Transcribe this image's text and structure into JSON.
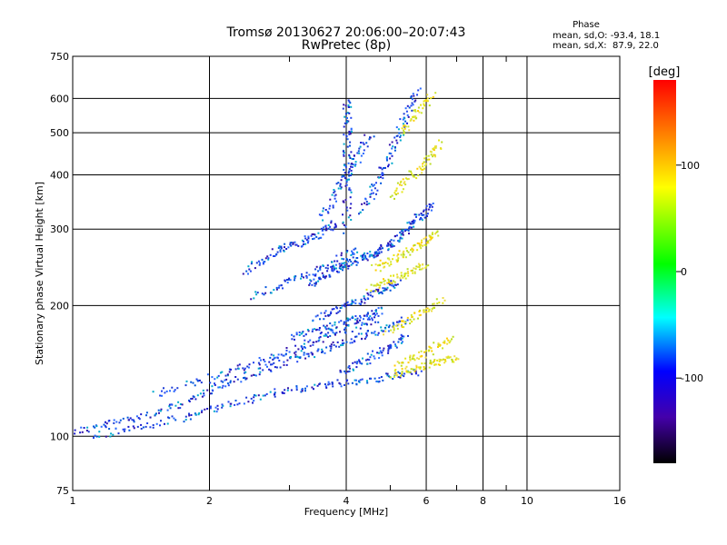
{
  "chart_data": {
    "type": "scatter",
    "title": "Tromsø 20130627 20:06:00–20:07:43",
    "subtitle": "RwPretec (8p)",
    "xlabel": "Frequency [MHz]",
    "ylabel": "Stationary phase Virtual Height [km]",
    "x_scale": "log",
    "y_scale": "log",
    "xlim": [
      1,
      16
    ],
    "ylim": [
      75,
      750
    ],
    "x_ticks": [
      1,
      2,
      4,
      6,
      8,
      10,
      16
    ],
    "x_minor_ticks": [
      3,
      5,
      7,
      9
    ],
    "y_ticks": [
      75,
      100,
      200,
      300,
      400,
      500,
      600,
      750
    ],
    "grid": true,
    "phase_info": {
      "title": "Phase",
      "line_o": "mean, sd,O: -93.4, 18.1",
      "line_x": "mean, sd,X:  87.9, 22.0"
    },
    "colorbar": {
      "label": "[deg]",
      "range": [
        -180,
        180
      ],
      "ticks": [
        100,
        0,
        -100
      ],
      "colors": [
        "#ff0000",
        "#ff8800",
        "#ffff00",
        "#00ff00",
        "#00ffff",
        "#0000ff",
        "#4400aa",
        "#000000"
      ]
    },
    "series": [
      {
        "mode": "O",
        "phase_mean": -93.4,
        "color": "#1a3ad6",
        "traces": [
          [
            [
              1.0,
              103
            ],
            [
              1.15,
              106
            ],
            [
              1.3,
              110
            ],
            [
              1.5,
              113
            ],
            [
              1.7,
              118
            ],
            [
              1.9,
              125
            ],
            [
              2.1,
              132
            ],
            [
              2.3,
              136
            ],
            [
              2.6,
              142
            ],
            [
              2.9,
              148
            ],
            [
              3.2,
              154
            ],
            [
              3.5,
              158
            ],
            [
              3.8,
              163
            ],
            [
              4.2,
              169
            ],
            [
              4.6,
              175
            ],
            [
              5.0,
              180
            ],
            [
              5.4,
              186
            ]
          ],
          [
            [
              1.1,
              100
            ],
            [
              1.3,
              104
            ],
            [
              1.5,
              107
            ],
            [
              1.8,
              111
            ],
            [
              2.0,
              116
            ],
            [
              2.3,
              120
            ],
            [
              2.6,
              125
            ],
            [
              3.0,
              128
            ],
            [
              3.4,
              131
            ],
            [
              3.8,
              133
            ],
            [
              4.3,
              135
            ],
            [
              4.8,
              137
            ],
            [
              5.3,
              139
            ],
            [
              5.8,
              142
            ]
          ],
          [
            [
              1.5,
              125
            ],
            [
              1.8,
              132
            ],
            [
              2.1,
              139
            ],
            [
              2.4,
              146
            ],
            [
              2.7,
              152
            ],
            [
              3.0,
              158
            ],
            [
              3.3,
              164
            ],
            [
              3.6,
              170
            ],
            [
              3.9,
              176
            ],
            [
              4.3,
              182
            ],
            [
              4.7,
              189
            ]
          ],
          [
            [
              2.4,
              240
            ],
            [
              2.6,
              255
            ],
            [
              2.8,
              268
            ],
            [
              3.0,
              276
            ],
            [
              3.2,
              282
            ],
            [
              3.4,
              290
            ],
            [
              3.6,
              302
            ],
            [
              3.8,
              312
            ]
          ],
          [
            [
              2.5,
              210
            ],
            [
              2.8,
              222
            ],
            [
              3.1,
              232
            ],
            [
              3.4,
              240
            ],
            [
              3.7,
              250
            ],
            [
              4.0,
              262
            ],
            [
              4.3,
              270
            ]
          ],
          [
            [
              3.3,
              225
            ],
            [
              3.5,
              232
            ],
            [
              3.7,
              240
            ],
            [
              3.9,
              247
            ],
            [
              4.1,
              253
            ],
            [
              4.3,
              258
            ],
            [
              4.5,
              263
            ],
            [
              4.7,
              269
            ],
            [
              4.9,
              276
            ],
            [
              5.1,
              285
            ],
            [
              5.3,
              296
            ],
            [
              5.5,
              307
            ],
            [
              5.7,
              318
            ],
            [
              5.9,
              330
            ],
            [
              6.1,
              345
            ]
          ],
          [
            [
              3.4,
              188
            ],
            [
              3.7,
              194
            ],
            [
              4.0,
              201
            ],
            [
              4.3,
              207
            ],
            [
              4.6,
              214
            ],
            [
              4.9,
              221
            ],
            [
              5.2,
              228
            ]
          ],
          [
            [
              3.0,
              170
            ],
            [
              3.3,
              174
            ],
            [
              3.6,
              178
            ],
            [
              3.9,
              183
            ],
            [
              4.2,
              187
            ],
            [
              4.5,
              192
            ],
            [
              4.8,
              197
            ]
          ],
          [
            [
              4.0,
              300
            ],
            [
              4.0,
              350
            ],
            [
              4.0,
              400
            ],
            [
              4.0,
              450
            ],
            [
              4.0,
              500
            ],
            [
              4.0,
              550
            ],
            [
              4.0,
              600
            ]
          ],
          [
            [
              4.3,
              330
            ],
            [
              4.5,
              360
            ],
            [
              4.7,
              395
            ],
            [
              4.9,
              430
            ],
            [
              5.1,
              470
            ],
            [
              5.3,
              520
            ],
            [
              5.5,
              580
            ],
            [
              5.7,
              630
            ]
          ],
          [
            [
              3.9,
              140
            ],
            [
              4.2,
              146
            ],
            [
              4.5,
              152
            ],
            [
              4.8,
              158
            ],
            [
              5.1,
              164
            ],
            [
              5.4,
              170
            ]
          ],
          [
            [
              3.5,
              320
            ],
            [
              3.7,
              350
            ],
            [
              3.9,
              385
            ],
            [
              4.1,
              420
            ],
            [
              4.3,
              460
            ],
            [
              4.5,
              500
            ]
          ]
        ]
      },
      {
        "mode": "X",
        "phase_mean": 87.9,
        "color": "#e6e61a",
        "traces": [
          [
            [
              4.6,
              245
            ],
            [
              4.9,
              252
            ],
            [
              5.2,
              260
            ],
            [
              5.5,
              268
            ],
            [
              5.8,
              277
            ],
            [
              6.1,
              287
            ],
            [
              6.3,
              296
            ]
          ],
          [
            [
              5.0,
              139
            ],
            [
              5.4,
              142
            ],
            [
              5.8,
              145
            ],
            [
              6.2,
              148
            ],
            [
              6.6,
              150
            ],
            [
              7.0,
              152
            ]
          ],
          [
            [
              5.2,
              148
            ],
            [
              5.6,
              152
            ],
            [
              6.0,
              157
            ],
            [
              6.4,
              163
            ],
            [
              6.8,
              170
            ]
          ],
          [
            [
              4.9,
              175
            ],
            [
              5.3,
              182
            ],
            [
              5.7,
              190
            ],
            [
              6.1,
              198
            ],
            [
              6.5,
              206
            ]
          ],
          [
            [
              4.5,
              220
            ],
            [
              4.8,
              226
            ],
            [
              5.1,
              232
            ],
            [
              5.4,
              238
            ],
            [
              5.7,
              244
            ],
            [
              6.0,
              250
            ]
          ],
          [
            [
              5.0,
              360
            ],
            [
              5.3,
              380
            ],
            [
              5.6,
              402
            ],
            [
              5.9,
              425
            ],
            [
              6.2,
              450
            ],
            [
              6.4,
              480
            ]
          ],
          [
            [
              5.3,
              500
            ],
            [
              5.6,
              540
            ],
            [
              5.9,
              580
            ],
            [
              6.2,
              620
            ]
          ]
        ]
      }
    ]
  }
}
